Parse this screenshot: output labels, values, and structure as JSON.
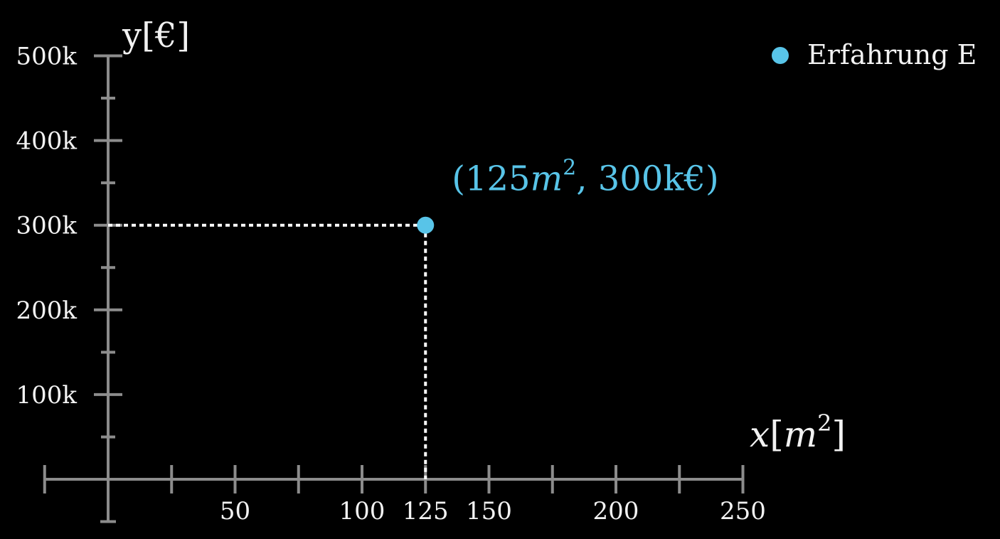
{
  "chart_data": {
    "type": "scatter",
    "xlabel": "x[m²]",
    "xlabel_parts": {
      "var": "x",
      "open": "[",
      "unit": "m",
      "sup": "2",
      "close": "]"
    },
    "ylabel": "y[€]",
    "xlim": [
      -25,
      250
    ],
    "ylim": [
      -50000,
      500000
    ],
    "x_ticks": [
      0,
      25,
      50,
      75,
      100,
      125,
      150,
      175,
      200,
      225,
      250
    ],
    "x_tick_labels": [
      {
        "value": 50,
        "label": "50"
      },
      {
        "value": 100,
        "label": "100"
      },
      {
        "value": 125,
        "label": "125"
      },
      {
        "value": 150,
        "label": "150"
      },
      {
        "value": 200,
        "label": "200"
      },
      {
        "value": 250,
        "label": "250"
      }
    ],
    "y_ticks": [
      50000,
      100000,
      150000,
      200000,
      250000,
      300000,
      350000,
      400000,
      450000,
      500000
    ],
    "y_tick_labels": [
      {
        "value": 100000,
        "label": "100k"
      },
      {
        "value": 200000,
        "label": "200k"
      },
      {
        "value": 300000,
        "label": "300k"
      },
      {
        "value": 400000,
        "label": "400k"
      },
      {
        "value": 500000,
        "label": "500k"
      }
    ],
    "series": [
      {
        "name": "Erfahrung E",
        "color": "#58c4e8",
        "points": [
          {
            "x": 125,
            "y": 300000
          }
        ]
      }
    ],
    "annotations": [
      {
        "x": 125,
        "y": 300000,
        "parts": {
          "open": "(125",
          "var": "m",
          "sup": "2",
          "rest": ", 300k€)"
        }
      }
    ],
    "legend": {
      "placement": "top-right"
    },
    "grid": false
  },
  "colors": {
    "background": "#000000",
    "axis": "#8c8c8c",
    "text": "#f2f2f2",
    "guide": "#ffffff",
    "accent": "#58c4e8"
  }
}
